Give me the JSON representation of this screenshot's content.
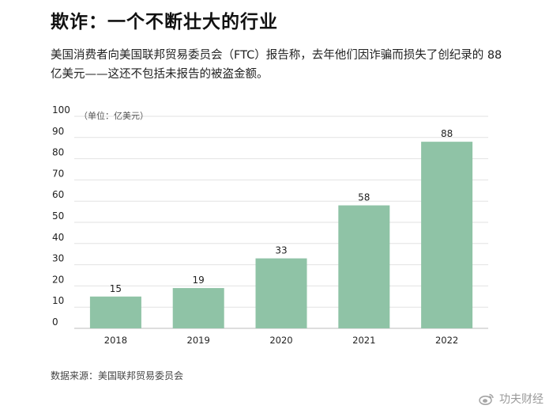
{
  "title": "欺诈：一个不断壮大的行业",
  "subtitle": "美国消费者向美国联邦贸易委员会（FTC）报告称，去年他们因诈骗而损失了创纪录的 88 亿美元——这还不包括未报告的被盗金额。",
  "source": "数据来源：美国联邦贸易委员会",
  "watermark": {
    "icon": "weibo-icon",
    "text": "功夫财经"
  },
  "colors": {
    "bar": "#8fc3a6",
    "grid": "#e2e2e2",
    "axis": "#bdbdbd"
  },
  "chart_data": {
    "type": "bar",
    "title": "",
    "unit_label": "（单位：亿美元）",
    "xlabel": "",
    "ylabel": "",
    "categories": [
      "2018",
      "2019",
      "2020",
      "2021",
      "2022"
    ],
    "values": [
      15,
      19,
      33,
      58,
      88
    ],
    "ylim": [
      0,
      100
    ],
    "yticks": [
      0,
      10,
      20,
      30,
      40,
      50,
      60,
      70,
      80,
      90,
      100
    ],
    "grid": true,
    "legend": false
  }
}
